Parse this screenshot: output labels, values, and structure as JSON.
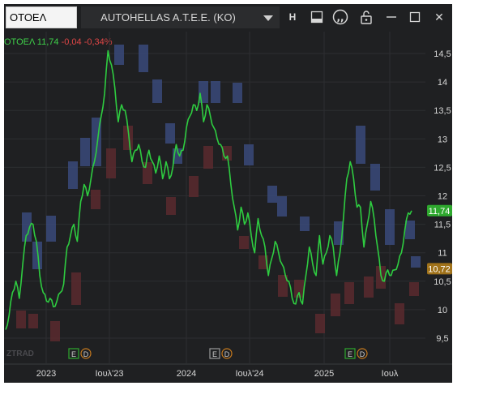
{
  "titlebar": {
    "symbol": "ΟΤΟΕΛ",
    "company": "AUTOHELLAS A.T.E.E. (KO)",
    "buttons": {
      "h_label": "H",
      "icons": [
        "panel-icon",
        "quote-icon",
        "unlock-icon",
        "minimize-icon",
        "maximize-icon",
        "close-icon"
      ],
      "close_label": "✕"
    }
  },
  "legend": {
    "symbol": "ΟΤΟΕΛ",
    "price": "11,74",
    "change": "-0,04",
    "change_pct": "-0,34%"
  },
  "colors": {
    "background": "#1f2022",
    "price_line": "#2ecc40",
    "bar_blue": "#3a4a7a",
    "bar_red": "#5a2a2e",
    "current_tag": "#2ea82e",
    "ref_tag": "#a0721a",
    "grid": "#2d2e31"
  },
  "markers": {
    "left_watermark": "ZTRAD",
    "events": [
      "E",
      "D"
    ]
  },
  "chart_data": {
    "type": "line",
    "ylim": [
      9.2,
      14.9
    ],
    "y_ticks": [
      9.5,
      10,
      10.5,
      11,
      11.5,
      12,
      12.5,
      13,
      13.5,
      14,
      14.5
    ],
    "y_tick_labels": [
      "9,5",
      "10",
      "10,5",
      "11",
      "11,5",
      "12",
      "12,5",
      "13",
      "13,5",
      "14",
      "14,5"
    ],
    "x_labels": [
      "2023",
      "Ιουλ'23",
      "2024",
      "Ιουλ'24",
      "2025",
      "Ιουλ"
    ],
    "current_price": 11.74,
    "current_price_label": "11,74",
    "reference_price": 10.72,
    "reference_price_label": "10,72",
    "series": [
      {
        "values": [
          9.65,
          9.9,
          10.3,
          10.5,
          10.2,
          10.8,
          11.3,
          11.45,
          11.5,
          11.2,
          10.6,
          10.3,
          10.15,
          10.2,
          10.05,
          10.15,
          10.3,
          10.45,
          11.1,
          11.3,
          11.5,
          11.2,
          11.9,
          12.2,
          12.0,
          12.3,
          12.6,
          13.0,
          13.4,
          13.8,
          14.55,
          14.3,
          13.9,
          13.3,
          13.6,
          13.5,
          13.1,
          12.6,
          12.8,
          12.9,
          12.6,
          12.5,
          12.8,
          12.6,
          12.4,
          12.7,
          12.3,
          12.6,
          12.3,
          12.5,
          12.9,
          12.7,
          12.8,
          13.2,
          13.4,
          13.6,
          13.5,
          13.8,
          13.3,
          13.6,
          13.4,
          13.2,
          13.0,
          12.9,
          12.7,
          12.7,
          12.2,
          11.8,
          11.4,
          11.8,
          11.5,
          11.7,
          11.3,
          11.0,
          11.6,
          11.3,
          11.1,
          10.6,
          10.9,
          11.2,
          11.0,
          10.8,
          10.6,
          10.5,
          10.2,
          10.1,
          10.3,
          10.1,
          10.6,
          11.1,
          10.8,
          10.6,
          11.3,
          10.8,
          11.0,
          11.3,
          11.1,
          10.6,
          11.0,
          11.6,
          12.3,
          12.6,
          12.3,
          11.8,
          11.8,
          11.1,
          11.5,
          11.9,
          11.6,
          11.1,
          10.6,
          10.5,
          10.7,
          10.6,
          10.7,
          10.8,
          11.0,
          11.4,
          11.7,
          11.74
        ]
      }
    ],
    "volume_bars_note": ""
  }
}
